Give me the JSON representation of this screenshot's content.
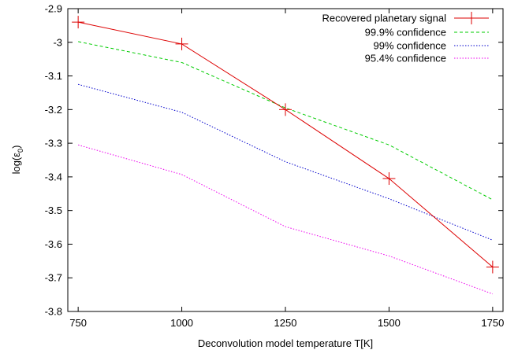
{
  "chart_data": {
    "type": "line",
    "title": "",
    "xlabel": "Deconvolution model temperature T[K]",
    "ylabel_base": "log(ε",
    "ylabel_sub": "0",
    "ylabel_end": ")",
    "xlim": [
      725,
      1775
    ],
    "ylim": [
      -3.8,
      -2.9
    ],
    "xticks": [
      750,
      1000,
      1250,
      1500,
      1750
    ],
    "yticks": [
      -3.8,
      -3.7,
      -3.6,
      -3.5,
      -3.4,
      -3.3,
      -3.2,
      -3.1,
      -3.0,
      -2.9
    ],
    "xtick_labels": [
      "750",
      "1000",
      "1250",
      "1500",
      "1750"
    ],
    "ytick_labels": [
      "-3.8",
      "-3.7",
      "-3.6",
      "-3.5",
      "-3.4",
      "-3.3",
      "-3.2",
      "-3.1",
      "-3",
      "-2.9"
    ],
    "legend_position": "top-right",
    "grid": false,
    "series": [
      {
        "name": "Recovered planetary signal",
        "color": "#dd0000",
        "style": "solid-with-plus-markers",
        "x": [
          750,
          1000,
          1250,
          1500,
          1750
        ],
        "y": [
          -2.94,
          -3.005,
          -3.2,
          -3.405,
          -3.668
        ]
      },
      {
        "name": "99.9% confidence",
        "color": "#00cc00",
        "style": "dashed",
        "x": [
          750,
          1000,
          1250,
          1500,
          1750
        ],
        "y": [
          -2.998,
          -3.06,
          -3.195,
          -3.305,
          -3.468
        ]
      },
      {
        "name": "99% confidence",
        "color": "#0000cc",
        "style": "dotted",
        "x": [
          750,
          1000,
          1250,
          1500,
          1750
        ],
        "y": [
          -3.125,
          -3.208,
          -3.355,
          -3.465,
          -3.588
        ]
      },
      {
        "name": "95.4% confidence",
        "color": "#ee00ee",
        "style": "dotted",
        "x": [
          750,
          1000,
          1250,
          1500,
          1750
        ],
        "y": [
          -3.305,
          -3.393,
          -3.548,
          -3.635,
          -3.748
        ]
      }
    ]
  }
}
